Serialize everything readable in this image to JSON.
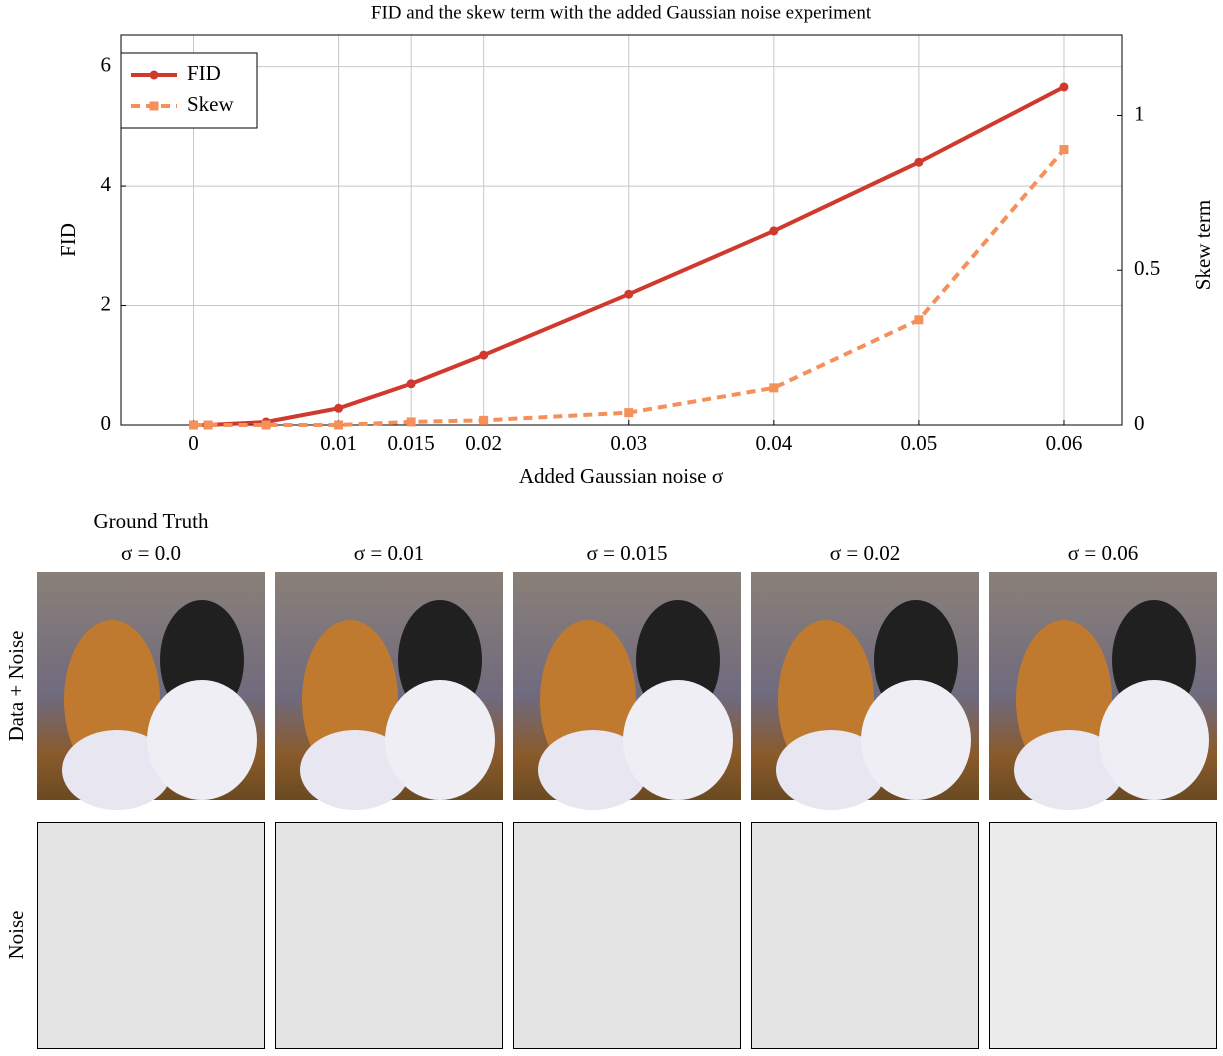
{
  "chart_data": {
    "type": "line",
    "title": "FID and the skew term with the added Gaussian noise experiment",
    "x_label": "Added Gaussian noise σ",
    "y_label": "FID",
    "y2_label": "Skew term",
    "x": [
      0,
      0.001,
      0.005,
      0.01,
      0.015,
      0.02,
      0.03,
      0.04,
      0.05,
      0.06
    ],
    "series": [
      {
        "name": "FID",
        "color": "#d03a2e",
        "line_style": "solid",
        "marker": "circle",
        "values": [
          0,
          0,
          0.05,
          0.28,
          0.69,
          1.17,
          2.19,
          3.25,
          4.4,
          5.66
        ]
      },
      {
        "name": "Skew",
        "color": "#f4905a",
        "line_style": "dashed",
        "marker": "square",
        "axis": "y2",
        "values": [
          0,
          0,
          0,
          0,
          0.01,
          0.015,
          0.04,
          0.12,
          0.34,
          0.89
        ]
      }
    ],
    "xlim": [
      -0.005,
      0.064
    ],
    "ylim": [
      0,
      6.53
    ],
    "y2lim": [
      0,
      1.26
    ],
    "xticks": [
      0,
      0.01,
      0.015,
      0.02,
      0.03,
      0.04,
      0.05,
      0.06
    ],
    "yticks": [
      0,
      2,
      4,
      6
    ],
    "y2ticks": [
      0,
      0.5,
      1
    ],
    "grid": true,
    "legend": "upper-left"
  },
  "figure": {
    "ground_truth_label": "Ground Truth",
    "column_labels": [
      "σ = 0.0",
      "σ = 0.01",
      "σ = 0.015",
      "σ = 0.02",
      "σ = 0.06"
    ],
    "row_labels": [
      "Data + Noise",
      "Noise"
    ]
  }
}
